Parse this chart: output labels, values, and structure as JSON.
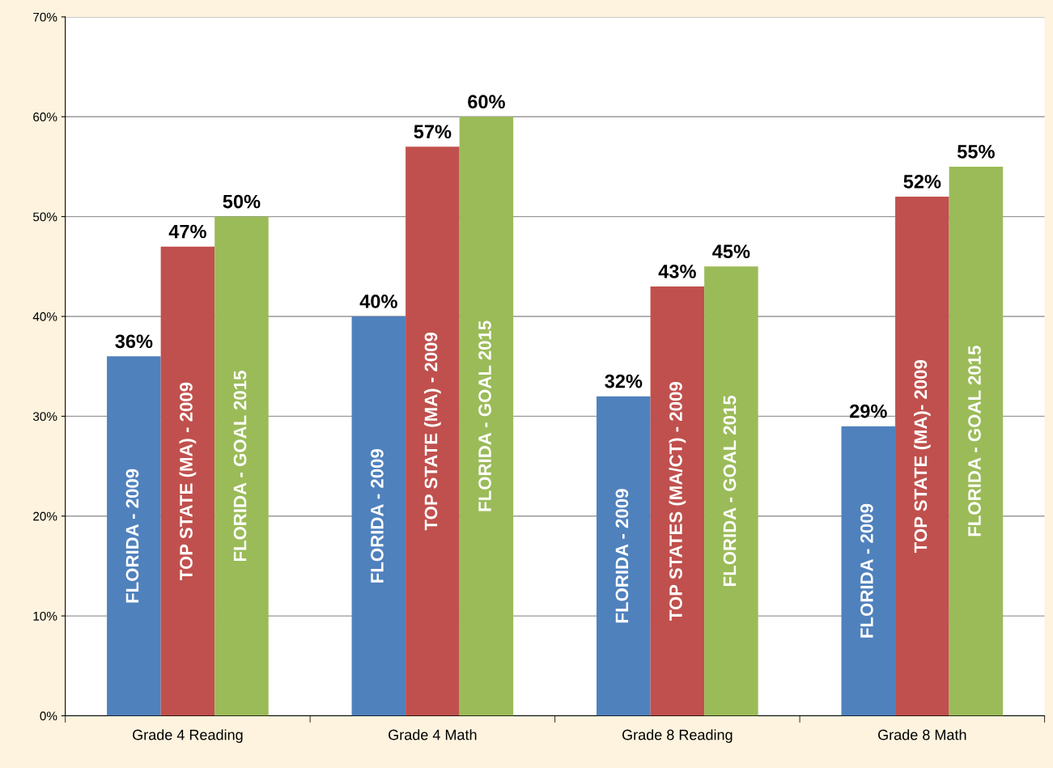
{
  "chart_data": {
    "type": "bar",
    "categories": [
      "Grade 4 Reading",
      "Grade 4 Math",
      "Grade 8 Reading",
      "Grade 8 Math"
    ],
    "series": [
      {
        "name": "FLORIDA - 2009",
        "color": "#4f81bd",
        "values": [
          36,
          40,
          32,
          29
        ],
        "value_labels": [
          "36%",
          "40%",
          "32%",
          "29%"
        ]
      },
      {
        "color": "#c0504d",
        "values": [
          47,
          57,
          43,
          52
        ],
        "value_labels": [
          "47%",
          "57%",
          "43%",
          "52%"
        ]
      },
      {
        "name": "FLORIDA - GOAL 2015",
        "color": "#9bbb59",
        "values": [
          50,
          60,
          45,
          55
        ],
        "value_labels": [
          "50%",
          "60%",
          "45%",
          "55%"
        ]
      }
    ],
    "annotations": [
      "TOP STATE (MA) - 2009",
      "TOP STATE (MA) - 2009",
      "TOP STATES (MA/CT) - 2009",
      "TOP STATE (MA)- 2009"
    ],
    "ylim": [
      0,
      70
    ],
    "yticks": [
      {
        "value": 0,
        "label": "0%"
      },
      {
        "value": 10,
        "label": "10%"
      },
      {
        "value": 20,
        "label": "20%"
      },
      {
        "value": 30,
        "label": "30%"
      },
      {
        "value": 40,
        "label": "40%"
      },
      {
        "value": 50,
        "label": "50%"
      },
      {
        "value": 60,
        "label": "60%"
      },
      {
        "value": 70,
        "label": "70%"
      }
    ],
    "grid": "y",
    "legend": false
  }
}
